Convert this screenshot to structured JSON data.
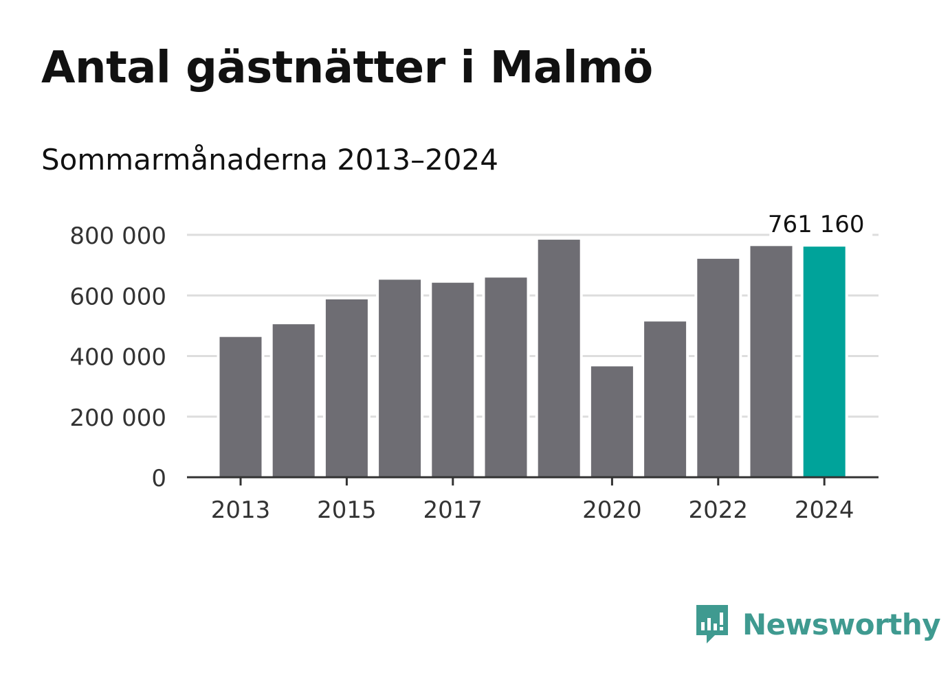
{
  "title": "Antal gästnätter i Malmö",
  "subtitle": "Sommarmånaderna 2013–2024",
  "brand": {
    "name": "Newsworthy",
    "icon": "newsworthy-logo-icon",
    "color": "#3f9a90"
  },
  "chart_data": {
    "type": "bar",
    "categories": [
      "2013",
      "2014",
      "2015",
      "2016",
      "2017",
      "2018",
      "2019",
      "2020",
      "2021",
      "2022",
      "2023",
      "2024"
    ],
    "values": [
      463000,
      505000,
      587000,
      652000,
      642000,
      659000,
      784000,
      366000,
      514000,
      721000,
      763000,
      761160
    ],
    "x_tick_labels": [
      "2013",
      "2015",
      "2017",
      "2020",
      "2022",
      "2024"
    ],
    "y_ticks": [
      0,
      200000,
      400000,
      600000,
      800000
    ],
    "y_tick_labels": [
      "0",
      "200 000",
      "400 000",
      "600 000",
      "800 000"
    ],
    "ylim": [
      0,
      800000
    ],
    "annotation": {
      "category": "2024",
      "label": "761 160"
    },
    "colors": {
      "bar": "#6e6d73",
      "highlight": "#00a39a",
      "grid": "#dddddd",
      "axis": "#333333"
    },
    "highlight_category": "2024",
    "grid": true
  }
}
